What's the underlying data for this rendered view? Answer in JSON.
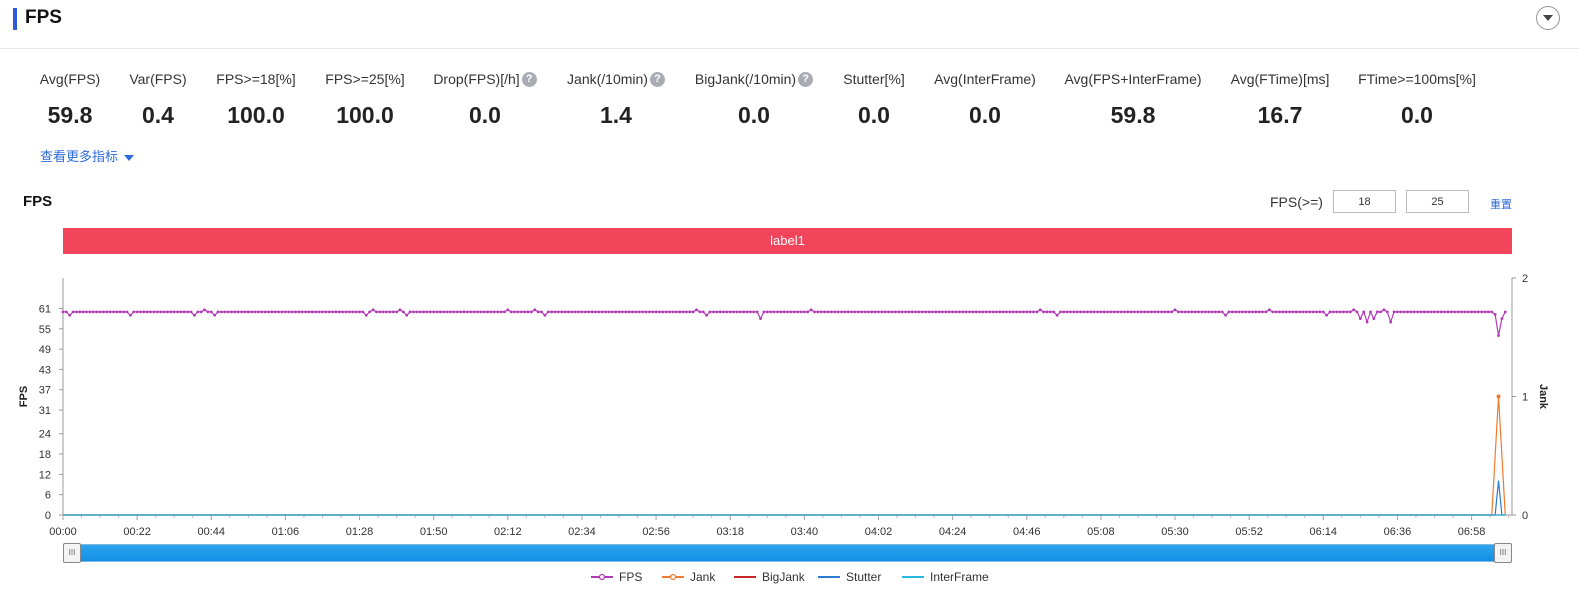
{
  "header": {
    "title": "FPS"
  },
  "metrics": [
    {
      "label": "Avg(FPS)",
      "value": "59.8",
      "help": false
    },
    {
      "label": "Var(FPS)",
      "value": "0.4",
      "help": false
    },
    {
      "label": "FPS>=18[%]",
      "value": "100.0",
      "help": false
    },
    {
      "label": "FPS>=25[%]",
      "value": "100.0",
      "help": false
    },
    {
      "label": "Drop(FPS)[/h]",
      "value": "0.0",
      "help": true
    },
    {
      "label": "Jank(/10min)",
      "value": "1.4",
      "help": true
    },
    {
      "label": "BigJank(/10min)",
      "value": "0.0",
      "help": true
    },
    {
      "label": "Stutter[%]",
      "value": "0.0",
      "help": false
    },
    {
      "label": "Avg(InterFrame)",
      "value": "0.0",
      "help": false
    },
    {
      "label": "Avg(FPS+InterFrame)",
      "value": "59.8",
      "help": false
    },
    {
      "label": "Avg(FTime)[ms]",
      "value": "16.7",
      "help": false
    },
    {
      "label": "FTime>=100ms[%]",
      "value": "0.0",
      "help": false
    }
  ],
  "more_link": "查看更多指标",
  "help_glyph": "?",
  "chart_header": {
    "title": "FPS",
    "threshold_label": "FPS(>=)",
    "threshold_1": "18",
    "threshold_2": "25",
    "reset_label": "重置"
  },
  "label_bar": "label1",
  "slider": {
    "handle_glyph": "III",
    "start": 0,
    "end": 1
  },
  "colors": {
    "FPS": "#b13bb4",
    "Jank": "#f07a2e",
    "BigJank": "#c62828",
    "Stutter": "#2c7bd0",
    "InterFrame": "#28b7e0",
    "label_bar": "#f2445a",
    "accent": "#2f5bd6"
  },
  "chart_data": {
    "type": "line",
    "xlabel": "",
    "ylabel": "FPS",
    "y2label": "Jank",
    "x_ticks": [
      "00:00",
      "00:22",
      "00:44",
      "01:06",
      "01:28",
      "01:50",
      "02:12",
      "02:34",
      "02:56",
      "03:18",
      "03:40",
      "04:02",
      "04:24",
      "04:46",
      "05:08",
      "05:30",
      "05:52",
      "06:14",
      "06:36",
      "06:58"
    ],
    "y_ticks": [
      0,
      6,
      12,
      18,
      24,
      31,
      37,
      43,
      49,
      55,
      61
    ],
    "y_range": [
      0,
      70
    ],
    "y2_ticks": [
      0,
      1,
      2
    ],
    "y2_range": [
      0,
      2
    ],
    "x_range_seconds": [
      0,
      430
    ],
    "fps_baseline": 60,
    "series": [
      {
        "name": "FPS",
        "axis": "left",
        "dips": [
          [
            2,
            59
          ],
          [
            20,
            59
          ],
          [
            39,
            59
          ],
          [
            42,
            60.6
          ],
          [
            45,
            59
          ],
          [
            90,
            59
          ],
          [
            92,
            60.6
          ],
          [
            100,
            60.6
          ],
          [
            102,
            59
          ],
          [
            132,
            60.6
          ],
          [
            140,
            60.6
          ],
          [
            143,
            59
          ],
          [
            188,
            60.6
          ],
          [
            191,
            59
          ],
          [
            207,
            58
          ],
          [
            222,
            60.6
          ],
          [
            290,
            60.6
          ],
          [
            295,
            59
          ],
          [
            330,
            60.6
          ],
          [
            345,
            59
          ],
          [
            358,
            60.6
          ],
          [
            375,
            59
          ],
          [
            383,
            60.6
          ],
          [
            385,
            58
          ],
          [
            387,
            57
          ],
          [
            389,
            58
          ],
          [
            392,
            60.6
          ],
          [
            394,
            57
          ],
          [
            396,
            60
          ],
          [
            424,
            60
          ],
          [
            425,
            59.2
          ],
          [
            426,
            53
          ],
          [
            427,
            58
          ],
          [
            428,
            60
          ]
        ]
      },
      {
        "name": "Jank",
        "axis": "right",
        "points": [
          [
            0,
            0
          ],
          [
            424,
            0
          ],
          [
            426,
            1
          ],
          [
            428,
            0
          ]
        ]
      },
      {
        "name": "BigJank",
        "axis": "right",
        "points": [
          [
            0,
            0
          ],
          [
            428,
            0
          ]
        ]
      },
      {
        "name": "Stutter",
        "axis": "right",
        "points": [
          [
            0,
            0
          ],
          [
            425,
            0
          ],
          [
            426,
            0.29
          ],
          [
            427,
            0
          ],
          [
            428,
            0
          ]
        ]
      },
      {
        "name": "InterFrame",
        "axis": "right",
        "points": [
          [
            0,
            0
          ],
          [
            428,
            0
          ]
        ]
      }
    ],
    "legend": [
      "FPS",
      "Jank",
      "BigJank",
      "Stutter",
      "InterFrame"
    ],
    "legend_position": "bottom-center",
    "grid": false
  }
}
